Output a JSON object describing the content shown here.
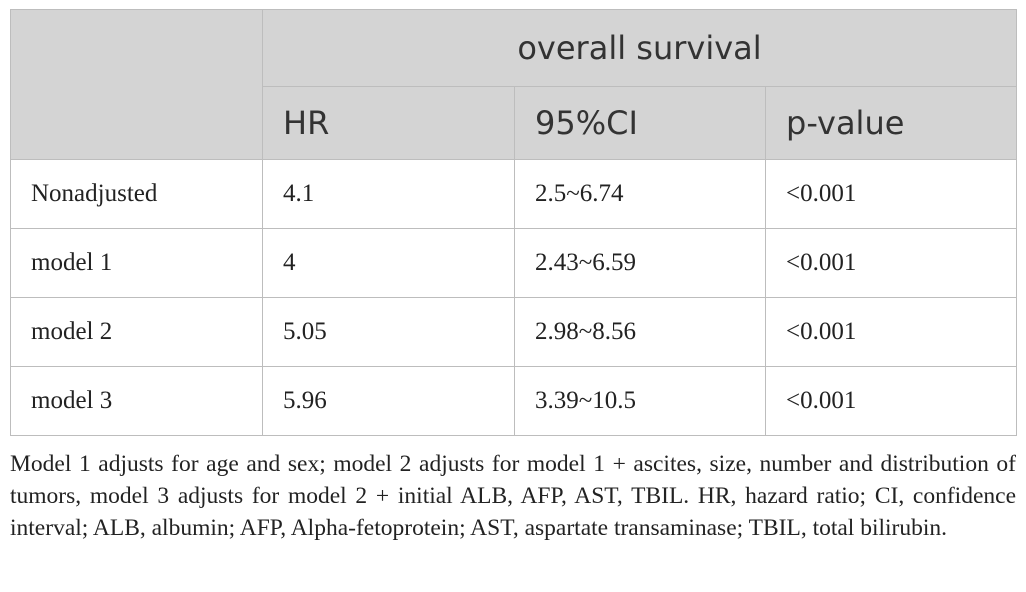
{
  "table": {
    "group_header": "overall survival",
    "column_headers": [
      "HR",
      "95%CI",
      "p-value"
    ],
    "rows": [
      {
        "label": "Nonadjusted",
        "hr": "4.1",
        "ci": "2.5~6.74",
        "p": "<0.001"
      },
      {
        "label": "model 1",
        "hr": "4",
        "ci": "2.43~6.59",
        "p": "<0.001"
      },
      {
        "label": "model 2",
        "hr": "5.05",
        "ci": "2.98~8.56",
        "p": "<0.001"
      },
      {
        "label": "model 3",
        "hr": "5.96",
        "ci": "3.39~10.5",
        "p": "<0.001"
      }
    ]
  },
  "footnote": "Model 1 adjusts for age and sex; model 2 adjusts for model 1 + ascites, size, number and distribution of tumors, model 3 adjusts for model 2 + initial ALB, AFP, AST, TBIL. HR, hazard ratio; CI, confidence interval; ALB, albumin; AFP, Alpha-fetoprotein; AST, aspartate transaminase; TBIL, total bilirubin.",
  "colors": {
    "header_background": "#d4d4d4",
    "border": "#bdbdbd"
  }
}
